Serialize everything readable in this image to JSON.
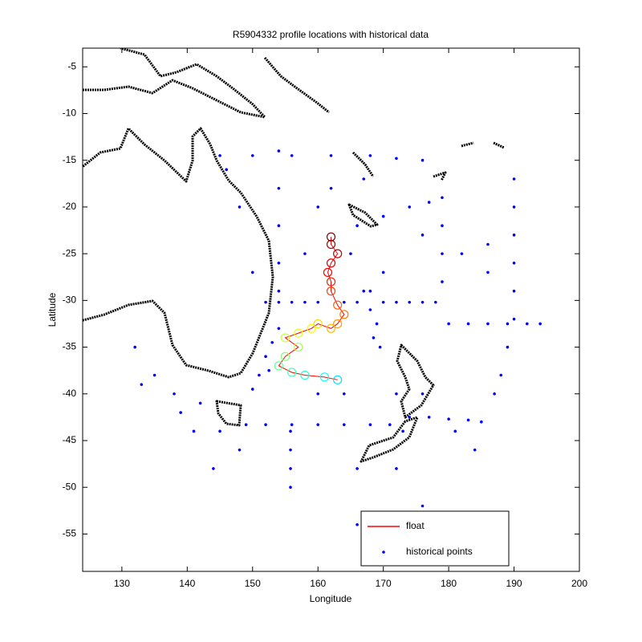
{
  "chart_data": {
    "type": "scatter",
    "title": "R5904332 profile locations with historical data",
    "x_label": "Longitude",
    "y_label": "Latitude",
    "xlim": [
      124,
      200
    ],
    "ylim": [
      -59,
      -3
    ],
    "xticks": [
      130,
      140,
      150,
      160,
      170,
      180,
      190,
      200
    ],
    "yticks": [
      -5,
      -10,
      -15,
      -20,
      -25,
      -30,
      -35,
      -40,
      -45,
      -50,
      -55
    ],
    "legend": "lower right",
    "colormap": "jet",
    "series": [
      {
        "name": "float",
        "color": "#ff0000",
        "x": [
          163,
          161,
          158,
          156,
          154,
          155,
          157,
          155,
          157,
          159,
          160,
          162,
          163,
          164,
          163,
          162,
          162,
          161.5,
          162,
          163,
          162,
          162
        ],
        "y": [
          -38.5,
          -38.2,
          -38,
          -37.7,
          -37,
          -36,
          -35,
          -34,
          -33.5,
          -33,
          -32.5,
          -33,
          -32.5,
          -31.5,
          -30.5,
          -29,
          -28,
          -27,
          -26,
          -25,
          -24,
          -23.2
        ]
      },
      {
        "name": "historical points",
        "color": "#0000ff",
        "x": [
          152,
          154,
          156,
          158,
          160,
          164,
          166,
          170,
          172,
          174,
          176,
          178,
          149,
          152,
          156,
          160,
          164,
          168,
          171,
          180,
          183,
          186,
          189,
          192,
          194,
          145,
          150,
          156,
          162,
          168,
          172,
          176,
          190,
          190,
          190,
          190,
          190,
          190,
          189,
          188,
          187,
          185,
          174,
          177,
          180,
          183,
          179,
          179,
          179,
          179,
          154,
          154,
          154,
          154,
          154,
          155.8,
          155.8,
          155.8,
          155.8,
          166,
          170,
          174,
          177,
          152,
          153,
          154,
          152.5,
          151,
          150,
          168,
          169,
          168.5,
          169.5,
          167,
          168,
          132,
          135,
          138,
          142,
          145,
          144,
          148,
          141,
          139,
          133,
          172,
          164,
          160,
          166,
          172,
          176,
          166,
          181,
          184,
          173,
          176,
          165,
          158,
          150,
          170,
          176,
          182,
          186,
          186,
          160,
          162,
          148,
          146,
          167
        ],
        "y": [
          -30.2,
          -30.2,
          -30.2,
          -30.2,
          -30.2,
          -30.2,
          -30.2,
          -30.2,
          -30.2,
          -30.2,
          -30.2,
          -30.2,
          -43.3,
          -43.3,
          -43.3,
          -43.3,
          -43.3,
          -43.3,
          -43.3,
          -32.5,
          -32.5,
          -32.5,
          -32.5,
          -32.5,
          -32.5,
          -14.5,
          -14.5,
          -14.5,
          -14.5,
          -14.5,
          -14.8,
          -15,
          -17,
          -20,
          -23,
          -26,
          -29,
          -32,
          -35,
          -38,
          -40,
          -43,
          -42.5,
          -42.5,
          -42.7,
          -42.8,
          -19,
          -22,
          -25,
          -28,
          -14,
          -18,
          -22,
          -26,
          -29,
          -44,
          -46,
          -48,
          -50,
          -22,
          -21,
          -20,
          -19.5,
          -36,
          -34.5,
          -33,
          -37.5,
          -38,
          -39.5,
          -31,
          -32.5,
          -34,
          -35,
          -29,
          -29,
          -35,
          -38,
          -40,
          -41,
          -44,
          -48,
          -46,
          -44,
          -42,
          -39,
          -40,
          -40,
          -40,
          -48,
          -48,
          -52,
          -54,
          -44,
          -46,
          -44,
          -40,
          -25,
          -25,
          -27,
          -27,
          -23,
          -25,
          -24,
          -27,
          -20,
          -18,
          -20,
          -16,
          -17
        ]
      }
    ]
  }
}
